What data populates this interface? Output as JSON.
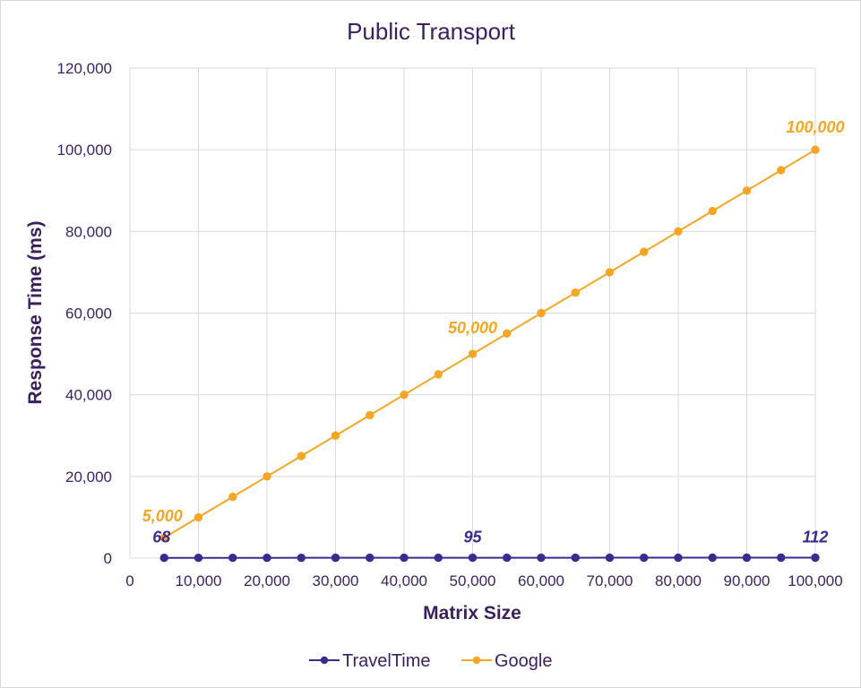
{
  "chart_data": {
    "type": "line",
    "title": "Public Transport",
    "xlabel": "Matrix Size",
    "ylabel": "Response Time (ms)",
    "xlim": [
      0,
      100000
    ],
    "ylim": [
      0,
      120000
    ],
    "x_ticks": [
      "0",
      "10,000",
      "20,000",
      "30,000",
      "40,000",
      "50,000",
      "60,000",
      "70,000",
      "80,000",
      "90,000",
      "100,000"
    ],
    "y_ticks": [
      "0",
      "20,000",
      "40,000",
      "60,000",
      "80,000",
      "100,000",
      "120,000"
    ],
    "grid": true,
    "legend": "bottom",
    "x": [
      5000,
      10000,
      15000,
      20000,
      25000,
      30000,
      35000,
      40000,
      45000,
      50000,
      55000,
      60000,
      65000,
      70000,
      75000,
      80000,
      85000,
      90000,
      95000,
      100000
    ],
    "series": [
      {
        "name": "TravelTime",
        "color": "#3d2a8f",
        "values": [
          68,
          71,
          73,
          76,
          78,
          81,
          83,
          86,
          88,
          95,
          93,
          96,
          98,
          100,
          103,
          105,
          107,
          109,
          110,
          112
        ]
      },
      {
        "name": "Google",
        "color": "#f5a623",
        "values": [
          5000,
          10000,
          15000,
          20000,
          25000,
          30000,
          35000,
          40000,
          45000,
          50000,
          55000,
          60000,
          65000,
          70000,
          75000,
          80000,
          85000,
          90000,
          95000,
          100000
        ]
      }
    ],
    "data_labels": [
      {
        "series": 0,
        "index": 0,
        "text": "68"
      },
      {
        "series": 0,
        "index": 9,
        "text": "95"
      },
      {
        "series": 0,
        "index": 19,
        "text": "112"
      },
      {
        "series": 1,
        "index": 0,
        "text": "5,000"
      },
      {
        "series": 1,
        "index": 9,
        "text": "50,000"
      },
      {
        "series": 1,
        "index": 19,
        "text": "100,000"
      }
    ]
  }
}
